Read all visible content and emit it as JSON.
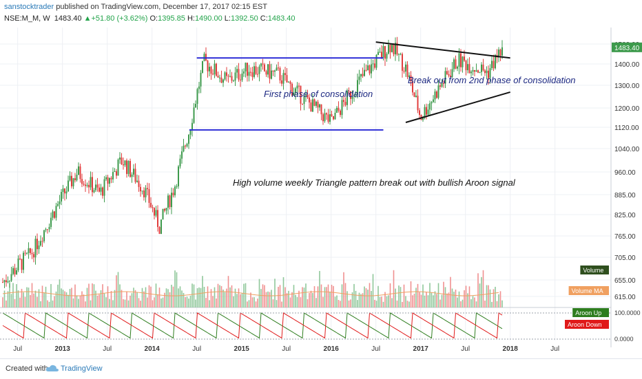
{
  "header": {
    "author": "sanstocktrader",
    "published": " published on TradingView.com, December 17, 2017 02:15 EST",
    "symbol": "NSE:M_M, W",
    "last": "1483.40",
    "change": "+51.80 (+3.62%)",
    "o_label": "O:",
    "o": "1395.85",
    "h_label": "H:",
    "h": "1490.00",
    "l_label": "L:",
    "l": "1392.50",
    "c_label": "C:",
    "c": "1483.40"
  },
  "footer": {
    "created": "Created with",
    "brand": "TradingView"
  },
  "colors": {
    "up": "#3d9a4c",
    "down": "#e03c3c",
    "line_blue": "#2b2bd6",
    "line_black": "#111111",
    "volume_ma": "#f0a060"
  },
  "chart_data": {
    "type": "candlestick",
    "x_ticks": [
      "Jul",
      "2013",
      "Jul",
      "2014",
      "Jul",
      "2015",
      "Jul",
      "2016",
      "Jul",
      "2017",
      "Jul",
      "2018",
      "Jul"
    ],
    "y_ticks": [
      "1500.00",
      "1400.00",
      "1300.00",
      "1200.00",
      "1120.00",
      "1040.00",
      "960.00",
      "885.00",
      "825.00",
      "765.00",
      "705.00",
      "655.00",
      "615.00"
    ],
    "price_waypoints": [
      [
        "2012-05",
        650
      ],
      [
        "2012-09",
        720
      ],
      [
        "2012-12",
        840
      ],
      [
        "2013-03",
        960
      ],
      [
        "2013-06",
        890
      ],
      [
        "2013-09",
        1000
      ],
      [
        "2013-12",
        900
      ],
      [
        "2014-02",
        790
      ],
      [
        "2014-04",
        910
      ],
      [
        "2014-06",
        1110
      ],
      [
        "2014-08",
        1410
      ],
      [
        "2014-11",
        1320
      ],
      [
        "2015-02",
        1380
      ],
      [
        "2015-06",
        1350
      ],
      [
        "2015-08",
        1280
      ],
      [
        "2016-01",
        1140
      ],
      [
        "2016-05",
        1330
      ],
      [
        "2016-09",
        1500
      ],
      [
        "2016-11",
        1380
      ],
      [
        "2017-01",
        1160
      ],
      [
        "2017-06",
        1420
      ],
      [
        "2017-10",
        1360
      ],
      [
        "2017-12",
        1483
      ]
    ],
    "last_close": 1483.4,
    "indicators": [
      {
        "name": "Volume",
        "color": "#2f4f1e"
      },
      {
        "name": "Volume MA",
        "color": "#f0a060"
      },
      {
        "name": "Aroon Up",
        "color": "#2e7d1e"
      },
      {
        "name": "Aroon Down",
        "color": "#e01919"
      }
    ],
    "aroon_ticks": [
      "100.0000",
      "0.0000"
    ],
    "annotations": [
      "First phase of consolidation",
      "Break out from 2nd phase of consolidation",
      "High volume weekly Triangle pattern break out with bullish Aroon signal"
    ],
    "lines": [
      {
        "kind": "horizontal",
        "color": "blue",
        "from": "2014-07",
        "to": "2016-08",
        "y": 1430
      },
      {
        "kind": "horizontal",
        "color": "blue",
        "from": "2014-06",
        "to": "2016-08",
        "y": 1110
      },
      {
        "kind": "trend",
        "color": "black",
        "from": [
          "2016-07",
          1510
        ],
        "to": [
          "2018-01",
          1430
        ]
      },
      {
        "kind": "trend",
        "color": "black",
        "from": [
          "2016-11",
          1140
        ],
        "to": [
          "2018-01",
          1270
        ]
      }
    ]
  }
}
